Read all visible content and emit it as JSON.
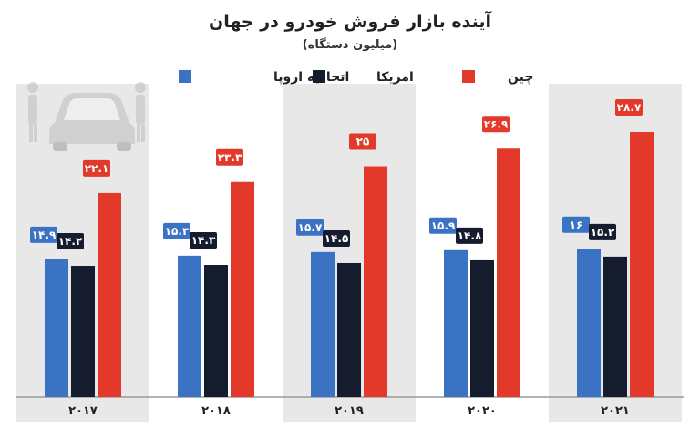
{
  "chart_data": {
    "type": "bar",
    "title": "آینده بازار فروش خودرو در جهان",
    "subtitle": "(میلیون دستگاه)",
    "categories": [
      "۲۰۱۷",
      "۲۰۱۸",
      "۲۰۱۹",
      "۲۰۲۰",
      "۲۰۲۱"
    ],
    "series": [
      {
        "name": "اتحادیه اروپا",
        "color": "#3b73c4",
        "values": [
          14.9,
          15.3,
          15.7,
          15.9,
          16
        ],
        "labels": [
          "۱۴.۹",
          "۱۵.۳",
          "۱۵.۷",
          "۱۵.۹",
          "۱۶"
        ]
      },
      {
        "name": "امریکا",
        "color": "#151c2e",
        "values": [
          14.2,
          14.3,
          14.5,
          14.8,
          15.2
        ],
        "labels": [
          "۱۴.۲",
          "۱۴.۳",
          "۱۴.۵",
          "۱۴.۸",
          "۱۵.۲"
        ]
      },
      {
        "name": "چین",
        "color": "#e2392b",
        "values": [
          22.1,
          23.3,
          25,
          26.9,
          28.7
        ],
        "labels": [
          "۲۲.۱",
          "۲۳.۳",
          "۲۵",
          "۲۶.۹",
          "۲۸.۷"
        ]
      }
    ],
    "xlabel": "",
    "ylabel": "",
    "grid": false,
    "legend": "top",
    "bg_color": "#e8e8e8",
    "icon": "car-icon"
  }
}
